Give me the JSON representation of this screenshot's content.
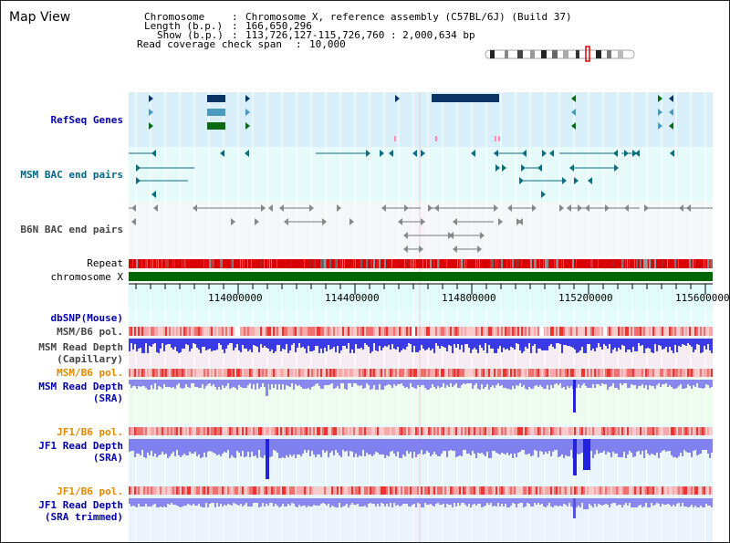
{
  "title": "Map View",
  "info": {
    "chromosome_label": "Chromosome",
    "chromosome_value": "Chromosome X, reference assembly (C57BL/6J) (Build 37)",
    "length_label": "Length (b.p.)",
    "length_value": "166,650,296",
    "show_label": "Show (b.p.)",
    "show_value": "113,726,127-115,726,760 : 2,000,634 bp",
    "coverage_label": "Read coverage check span",
    "coverage_value": "10,000"
  },
  "tracks": {
    "refseq": "RefSeq Genes",
    "msm_bac": "MSM BAC end pairs",
    "b6n_bac": "B6N BAC end pairs",
    "repeat": "Repeat",
    "chromosome": "chromosome X",
    "dbsnp": "dbSNP(Mouse)",
    "msm_b6_pol_1": "MSM/B6 pol.",
    "msm_read_depth_cap_1": "MSM Read Depth",
    "msm_read_depth_cap_2": "(Capillary)",
    "msm_b6_pol_2": "MSM/B6 pol.",
    "msm_read_depth_sra_1": "MSM Read Depth",
    "msm_read_depth_sra_2": "(SRA)",
    "jf1_b6_pol_1": "JF1/B6 pol.",
    "jf1_read_depth_sra_1": "JF1 Read Depth",
    "jf1_read_depth_sra_2": "(SRA)",
    "jf1_b6_pol_2": "JF1/B6 pol.",
    "jf1_read_depth_trim_1": "JF1 Read Depth",
    "jf1_read_depth_trim_2": "(SRA trimmed)"
  },
  "axis_ticks": [
    "114000000",
    "114400000",
    "114800000",
    "115200000",
    "115600000"
  ],
  "colors": {
    "label_blue": "#0000aa",
    "label_teal": "#006688",
    "label_gray": "#444444",
    "label_orange": "#e08800",
    "refseq_bg": "#d8eef8",
    "msm_bac_bg": "#e6fafa",
    "b6n_bac_bg": "#f4f6f8",
    "axis_bg": "#e0fbfb",
    "lower_bg": "#e6fbfb",
    "gene_dark": "#0a3466",
    "gene_mid": "#4a9ac0",
    "gene_green": "#0a6a14",
    "bac_teal": "#0a6e80",
    "bac_gray": "#555555",
    "chrom_green": "#006600",
    "depth_dark": "#2222dd",
    "depth_light": "#8888ee"
  }
}
